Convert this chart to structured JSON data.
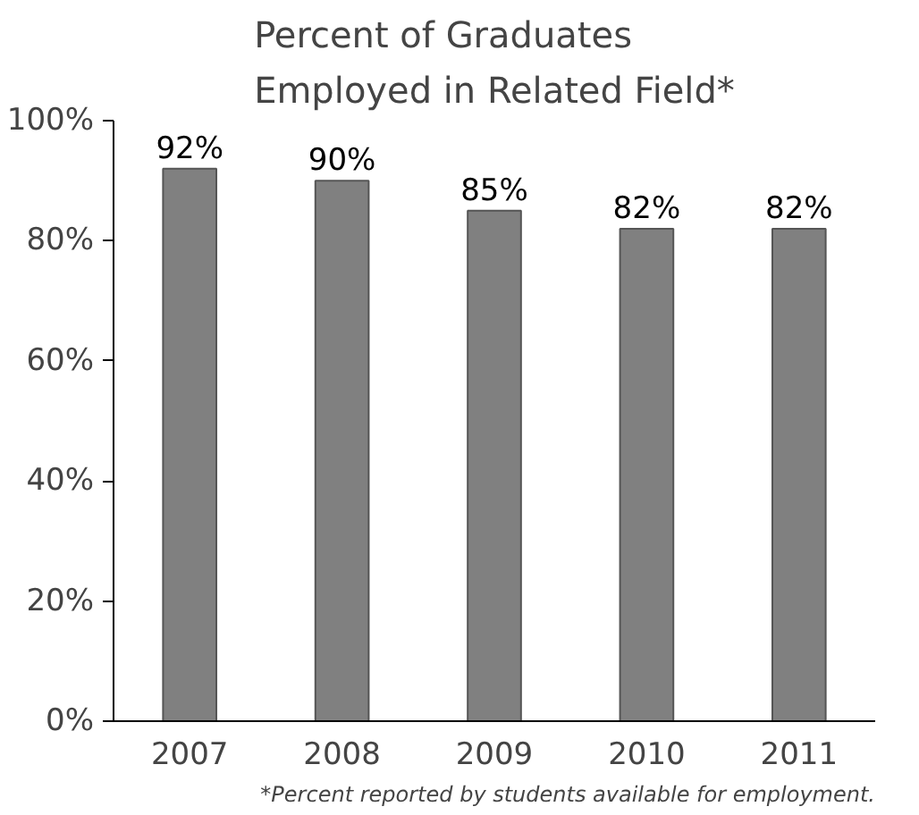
{
  "chart_data": {
    "type": "bar",
    "title": "Percent of Graduates\nEmployed in Related Field*",
    "categories": [
      "2007",
      "2008",
      "2009",
      "2010",
      "2011"
    ],
    "values": [
      92,
      90,
      85,
      82,
      82
    ],
    "value_labels": [
      "92%",
      "90%",
      "85%",
      "82%",
      "82%"
    ],
    "color": "#808080",
    "ylim": [
      0,
      100
    ],
    "yticks": [
      {
        "value": 0,
        "label": "0%"
      },
      {
        "value": 20,
        "label": "20%"
      },
      {
        "value": 40,
        "label": "40%"
      },
      {
        "value": 60,
        "label": "60%"
      },
      {
        "value": 80,
        "label": "80%"
      },
      {
        "value": 100,
        "label": "100%"
      }
    ],
    "grid": false,
    "annotations": [
      "*Percent reported by students available for employment."
    ]
  }
}
